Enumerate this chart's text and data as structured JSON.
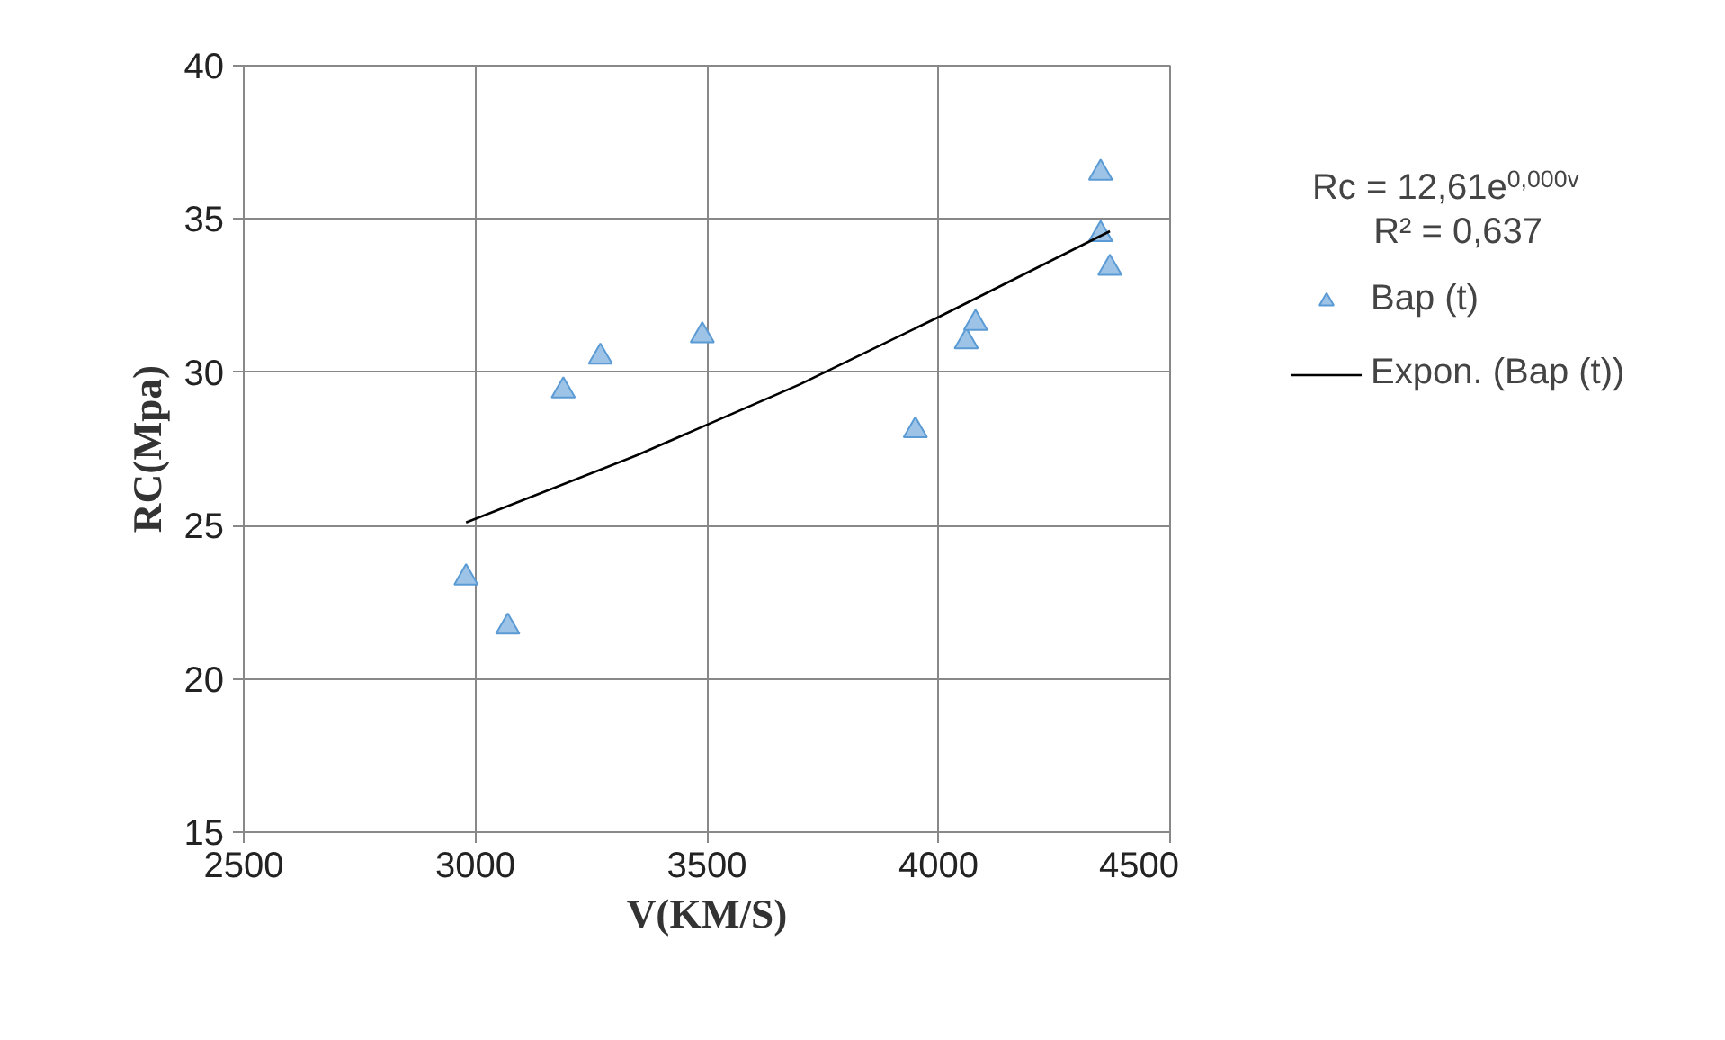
{
  "chart_data": {
    "type": "scatter",
    "xlabel": "V(KM/S)",
    "ylabel": "RC(Mpa)",
    "xlim": [
      2500,
      4500
    ],
    "xticks": [
      2500,
      3000,
      3500,
      4000,
      4500
    ],
    "ylim": [
      15,
      40
    ],
    "yticks": [
      15,
      20,
      25,
      30,
      35,
      40
    ],
    "grid": true,
    "legend": "right",
    "line_style": "solid",
    "series": [
      {
        "name": "Bap (t)",
        "marker": "triangle",
        "color": "#9dc3e6",
        "x": [
          2980,
          3070,
          3190,
          3270,
          3490,
          3950,
          4060,
          4080,
          4350,
          4350,
          4370
        ],
        "values": [
          23.3,
          21.7,
          29.4,
          30.5,
          31.2,
          28.1,
          31.0,
          31.6,
          36.5,
          34.5,
          33.4
        ]
      },
      {
        "name": "Expon. (Bap (t))",
        "type": "line",
        "color": "#000000",
        "x": [
          2980,
          3350,
          3700,
          4000,
          4370
        ],
        "values": [
          25.1,
          27.3,
          29.6,
          31.8,
          34.6
        ]
      }
    ],
    "annotations": [
      "Rc = 12,61e$^{0,000v}$",
      "R² = 0,637"
    ]
  }
}
